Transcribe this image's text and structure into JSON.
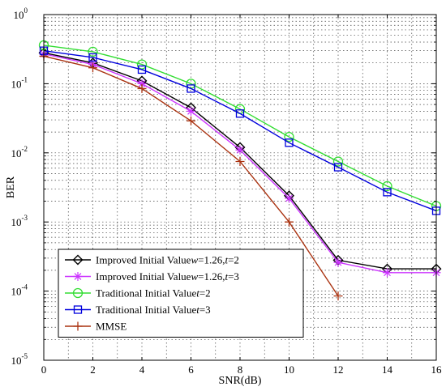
{
  "chart_data": {
    "type": "line",
    "xlabel": "SNR(dB)",
    "ylabel": "BER",
    "xlim": [
      0,
      16
    ],
    "ylim": [
      1e-05,
      1
    ],
    "yscale": "log",
    "grid": true,
    "legend_position": "bottom-left",
    "x_ticks": [
      "0",
      "2",
      "4",
      "6",
      "8",
      "10",
      "12",
      "14",
      "16"
    ],
    "y_ticks": [
      {
        "base": "10",
        "exp": "0"
      },
      {
        "base": "10",
        "exp": "-1"
      },
      {
        "base": "10",
        "exp": "-2"
      },
      {
        "base": "10",
        "exp": "-3"
      },
      {
        "base": "10",
        "exp": "-4"
      },
      {
        "base": "10",
        "exp": "-5"
      }
    ],
    "series": [
      {
        "name": "Improved Initial Value w=1.26,t=2",
        "label_parts": [
          "Improved Initial Value",
          "w",
          "=1.26,",
          "t",
          "=2"
        ],
        "color": "#000000",
        "marker": "diamond",
        "x": [
          0,
          2,
          4,
          6,
          8,
          10,
          12,
          14,
          16
        ],
        "y": [
          0.28,
          0.2,
          0.11,
          0.045,
          0.012,
          0.0024,
          0.00028,
          0.00021,
          0.00021
        ]
      },
      {
        "name": "Improved Initial Value w=1.26,t=3",
        "label_parts": [
          "Improved Initial Value",
          "w",
          "=1.26,",
          "t",
          "=3"
        ],
        "color": "#cc33ff",
        "marker": "asterisk",
        "x": [
          0,
          2,
          4,
          6,
          8,
          10,
          12,
          14,
          16
        ],
        "y": [
          0.27,
          0.19,
          0.1,
          0.04,
          0.011,
          0.0022,
          0.00026,
          0.000185,
          0.000185
        ]
      },
      {
        "name": "Traditional Initial Value t=2",
        "label_parts": [
          "Traditional Initial Value",
          "t",
          "=2",
          "",
          ""
        ],
        "color": "#33dd33",
        "marker": "circle",
        "x": [
          0,
          2,
          4,
          6,
          8,
          10,
          12,
          14,
          16
        ],
        "y": [
          0.36,
          0.29,
          0.19,
          0.1,
          0.043,
          0.017,
          0.0075,
          0.0033,
          0.0017
        ]
      },
      {
        "name": "Traditional Initial Value t=3",
        "label_parts": [
          "Traditional Initial Value",
          "t",
          "=3",
          "",
          ""
        ],
        "color": "#0000dd",
        "marker": "square",
        "x": [
          0,
          2,
          4,
          6,
          8,
          10,
          12,
          14,
          16
        ],
        "y": [
          0.3,
          0.24,
          0.16,
          0.085,
          0.037,
          0.014,
          0.0062,
          0.0027,
          0.00145
        ]
      },
      {
        "name": "MMSE",
        "label_parts": [
          "MMSE",
          "",
          "",
          "",
          ""
        ],
        "color": "#aa3311",
        "marker": "plus",
        "x": [
          0,
          2,
          4,
          6,
          8,
          10,
          12
        ],
        "y": [
          0.25,
          0.17,
          0.085,
          0.029,
          0.0075,
          0.001,
          8.5e-05
        ]
      }
    ]
  }
}
